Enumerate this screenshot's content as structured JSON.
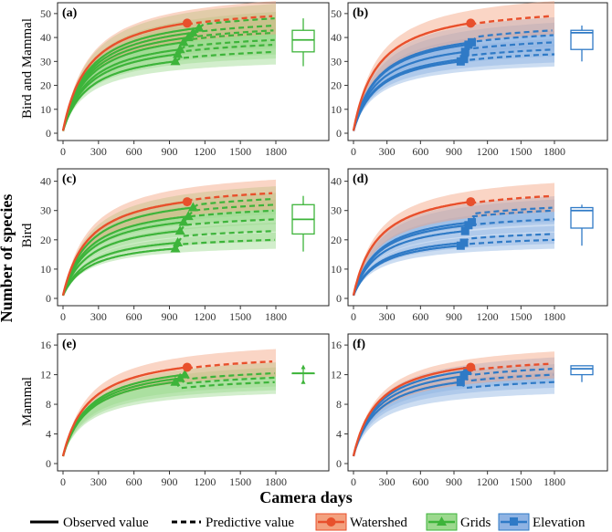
{
  "figure": {
    "xlabel": "Camera days",
    "ylabel": "Number of species",
    "row_labels": [
      "Bird and Mammal",
      "Bird",
      "Mammal"
    ]
  },
  "legend": {
    "observed": "Observed value",
    "predictive": "Predictive value",
    "watershed": "Watershed",
    "grids": "Grids",
    "elevation": "Elevation"
  },
  "colors": {
    "watershed": "#e8502c",
    "grids": "#3db43a",
    "elevation": "#2f7ac6",
    "watershed_fill": "#f3a17f",
    "grids_fill": "#9cd98e",
    "elevation_fill": "#8fb3e3"
  },
  "chart_data": [
    {
      "type": "line",
      "panel": "(a)",
      "group": "grids",
      "xticks": [
        0,
        300,
        600,
        900,
        1200,
        1500,
        1800
      ],
      "xlim": [
        0,
        1800
      ],
      "yticks": [
        0,
        10,
        20,
        30,
        40,
        50
      ],
      "ylim": [
        0,
        53
      ],
      "watershed": {
        "obs_end": 1050,
        "obs_value": 46,
        "pred_value": 49
      },
      "series_end_days": [
        950,
        970,
        990,
        1020,
        1060,
        1100,
        1150
      ],
      "series_obs_values": [
        30,
        33,
        35,
        38,
        40,
        42,
        44
      ],
      "series_pred_values": [
        34,
        37,
        39,
        42,
        43,
        45,
        48
      ],
      "box": {
        "min": 28,
        "q1": 34,
        "median": 39,
        "q3": 43,
        "max": 48
      }
    },
    {
      "type": "line",
      "panel": "(b)",
      "group": "elevation",
      "xticks": [
        0,
        300,
        600,
        900,
        1200,
        1500,
        1800
      ],
      "xlim": [
        0,
        1800
      ],
      "yticks": [
        0,
        10,
        20,
        30,
        40,
        50
      ],
      "ylim": [
        0,
        53
      ],
      "watershed": {
        "obs_end": 1050,
        "obs_value": 46,
        "pred_value": 49
      },
      "series_end_days": [
        960,
        990,
        1000,
        1030,
        1060
      ],
      "series_obs_values": [
        30,
        31,
        34,
        37,
        38
      ],
      "series_pred_values": [
        33,
        35,
        38,
        41,
        43
      ],
      "box": {
        "min": 30,
        "q1": 35,
        "median": 42,
        "q3": 43,
        "max": 45
      }
    },
    {
      "type": "line",
      "panel": "(c)",
      "group": "grids",
      "xticks": [
        0,
        300,
        600,
        900,
        1200,
        1500,
        1800
      ],
      "xlim": [
        0,
        1800
      ],
      "yticks": [
        0,
        10,
        20,
        30,
        40
      ],
      "ylim": [
        0,
        43
      ],
      "watershed": {
        "obs_end": 1050,
        "obs_value": 33,
        "pred_value": 36
      },
      "series_end_days": [
        950,
        970,
        990,
        1020,
        1060,
        1100
      ],
      "series_obs_values": [
        17,
        19,
        23,
        26,
        28,
        31
      ],
      "series_pred_values": [
        20,
        23,
        27,
        30,
        32,
        34
      ],
      "box": {
        "min": 16,
        "q1": 22,
        "median": 27,
        "q3": 32,
        "max": 35
      }
    },
    {
      "type": "line",
      "panel": "(d)",
      "group": "elevation",
      "xticks": [
        0,
        300,
        600,
        900,
        1200,
        1500,
        1800
      ],
      "xlim": [
        0,
        1800
      ],
      "yticks": [
        0,
        10,
        20,
        30,
        40
      ],
      "ylim": [
        0,
        43
      ],
      "watershed": {
        "obs_end": 1050,
        "obs_value": 33,
        "pred_value": 35
      },
      "series_end_days": [
        960,
        990,
        1000,
        1030,
        1060
      ],
      "series_obs_values": [
        18,
        19,
        23,
        25,
        26
      ],
      "series_pred_values": [
        20,
        22,
        27,
        30,
        31
      ],
      "box": {
        "min": 18,
        "q1": 24,
        "median": 30,
        "q3": 31,
        "max": 32
      }
    },
    {
      "type": "line",
      "panel": "(e)",
      "group": "grids",
      "xticks": [
        0,
        300,
        600,
        900,
        1200,
        1500,
        1800
      ],
      "xlim": [
        0,
        1800
      ],
      "yticks": [
        0,
        4,
        8,
        12,
        16
      ],
      "ylim": [
        0,
        17
      ],
      "watershed": {
        "obs_end": 1050,
        "obs_value": 13,
        "pred_value": 13.8
      },
      "series_end_days": [
        950,
        990,
        1030
      ],
      "series_obs_values": [
        11,
        11.5,
        12
      ],
      "series_pred_values": [
        11,
        11.6,
        12.2
      ],
      "box": {
        "min": 11,
        "q1": 12.2,
        "median": 12.2,
        "q3": 12.2,
        "max": 13
      },
      "box_outliers": [
        11,
        13
      ]
    },
    {
      "type": "line",
      "panel": "(f)",
      "group": "elevation",
      "xticks": [
        0,
        300,
        600,
        900,
        1200,
        1500,
        1800
      ],
      "xlim": [
        0,
        1800
      ],
      "yticks": [
        0,
        4,
        8,
        12,
        16
      ],
      "ylim": [
        0,
        17
      ],
      "watershed": {
        "obs_end": 1050,
        "obs_value": 13,
        "pred_value": 13.5
      },
      "series_end_days": [
        960,
        990,
        1020
      ],
      "series_obs_values": [
        11,
        11.8,
        12.5
      ],
      "series_pred_values": [
        11,
        12,
        12.8
      ],
      "box": {
        "min": 11,
        "q1": 12,
        "median": 12.8,
        "q3": 13.2,
        "max": 13.2
      }
    }
  ]
}
